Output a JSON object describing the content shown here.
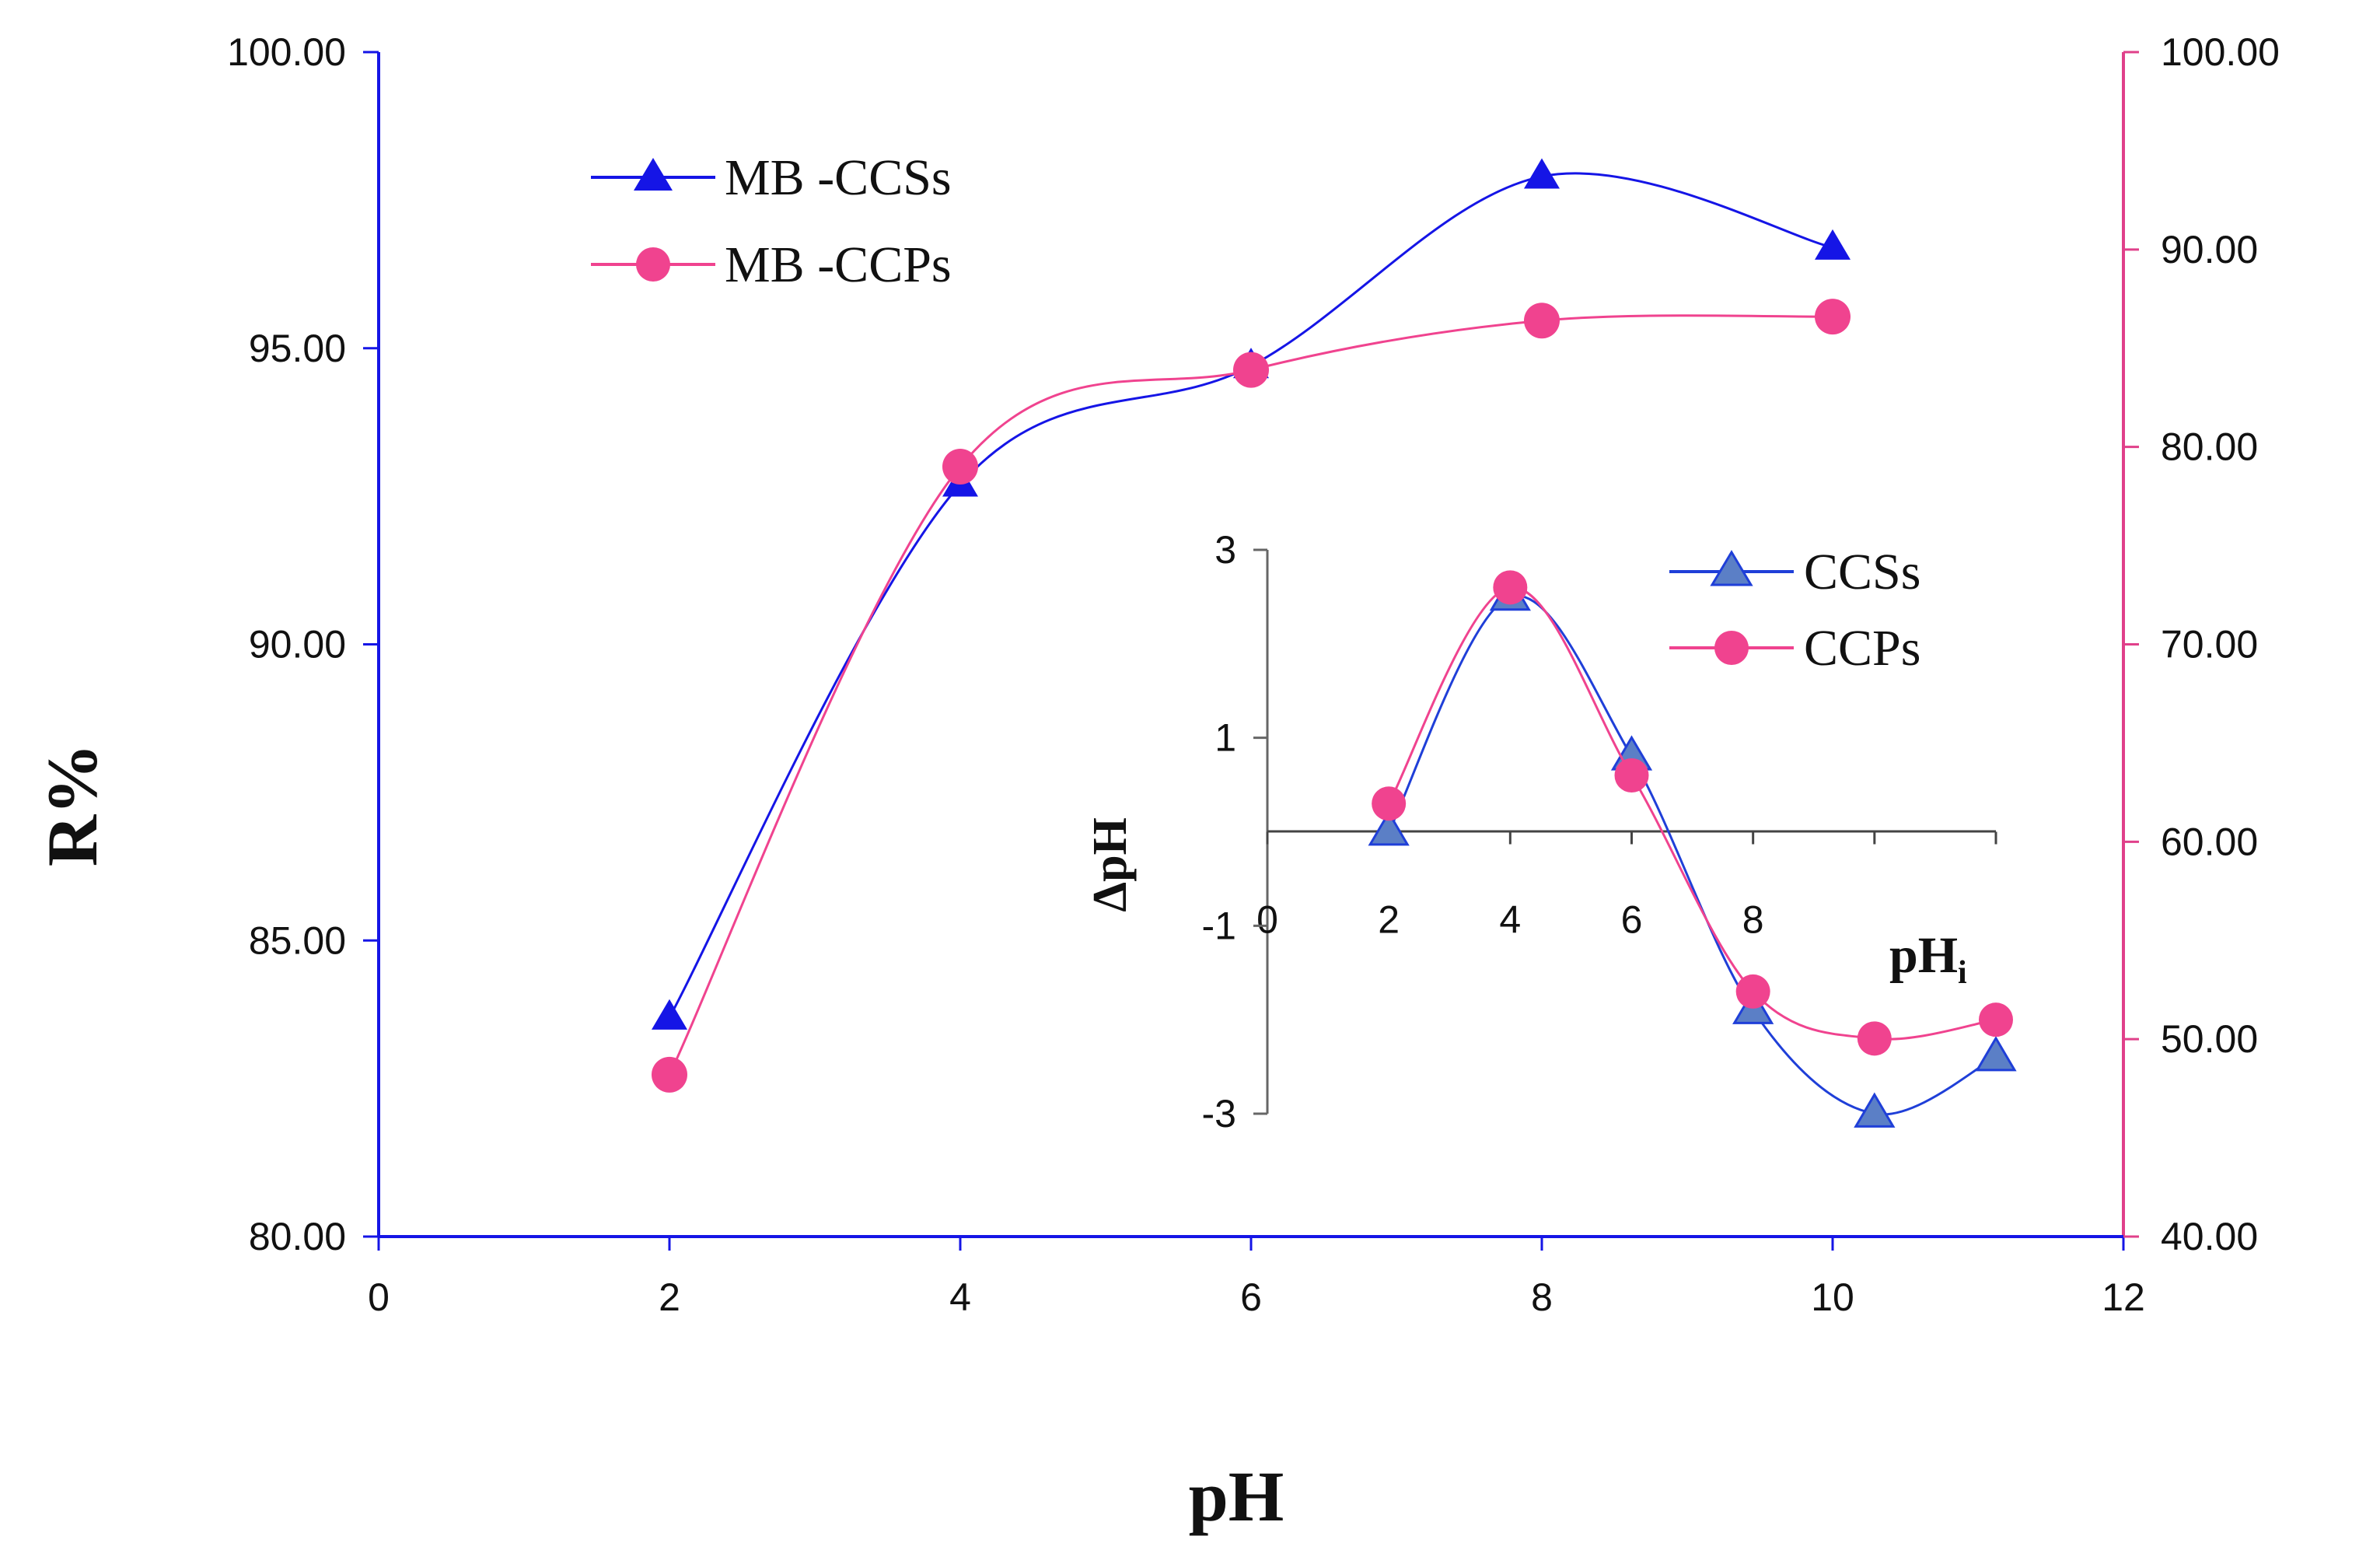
{
  "chart_data": [
    {
      "type": "line",
      "role": "main",
      "xlabel": "pH",
      "ylabel": "R%",
      "xlim": [
        0,
        12
      ],
      "xticks": [
        0,
        2,
        4,
        6,
        8,
        10,
        12
      ],
      "ylim_left": [
        80,
        100
      ],
      "yticks_left": [
        "80.00",
        "85.00",
        "90.00",
        "95.00",
        "100.00"
      ],
      "ylim_right": [
        40,
        100
      ],
      "yticks_right": [
        "40.00",
        "50.00",
        "60.00",
        "70.00",
        "80.00",
        "90.00",
        "100.00"
      ],
      "legend_position": "top-left",
      "series": [
        {
          "name": "MB -CCSs",
          "axis": "left",
          "color": "#1515e6",
          "marker": "triangle",
          "x": [
            2,
            4,
            6,
            8,
            10
          ],
          "y": [
            83.7,
            92.7,
            94.7,
            97.9,
            96.7
          ]
        },
        {
          "name": "MB -CCPs",
          "axis": "right",
          "color": "#f0438f",
          "marker": "circle",
          "x": [
            2,
            4,
            6,
            8,
            10
          ],
          "y": [
            48.2,
            79.0,
            83.9,
            86.4,
            86.6
          ]
        }
      ]
    },
    {
      "type": "line",
      "role": "inset",
      "xlabel": "pHi",
      "ylabel": "ΔpH",
      "xlim": [
        0,
        12
      ],
      "xticks": [
        0,
        2,
        4,
        6,
        8
      ],
      "ylim": [
        -3,
        3
      ],
      "yticks": [
        -3,
        -1,
        1,
        3
      ],
      "legend_position": "top-right",
      "series": [
        {
          "name": "CCSs",
          "color": "#1f3fd8",
          "marker": "triangle",
          "x": [
            2,
            4,
            6,
            8,
            10,
            12
          ],
          "y": [
            0.0,
            2.5,
            0.8,
            -1.9,
            -3.0,
            -2.4
          ]
        },
        {
          "name": "CCPs",
          "color": "#f0438f",
          "marker": "circle",
          "x": [
            2,
            4,
            6,
            8,
            10,
            12
          ],
          "y": [
            0.3,
            2.6,
            0.6,
            -1.7,
            -2.2,
            -2.0
          ]
        }
      ]
    }
  ]
}
